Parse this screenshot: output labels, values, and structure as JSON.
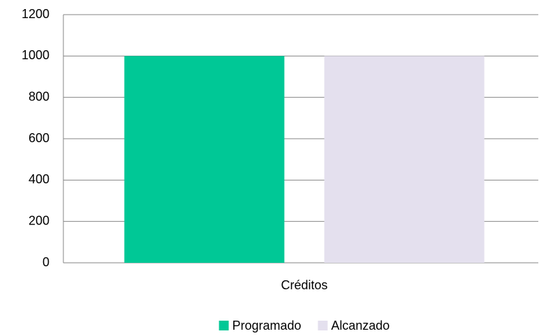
{
  "chart_data": {
    "type": "bar",
    "categories": [
      "Créditos"
    ],
    "series": [
      {
        "name": "Programado",
        "color": "#00c896",
        "values": [
          1000
        ]
      },
      {
        "name": "Alcanzado",
        "color": "#e4e0ee",
        "values": [
          1000
        ]
      }
    ],
    "ylim": [
      0,
      1200
    ],
    "yticks": [
      0,
      200,
      400,
      600,
      800,
      1000,
      1200
    ],
    "grid": true,
    "legend": "bottom"
  }
}
